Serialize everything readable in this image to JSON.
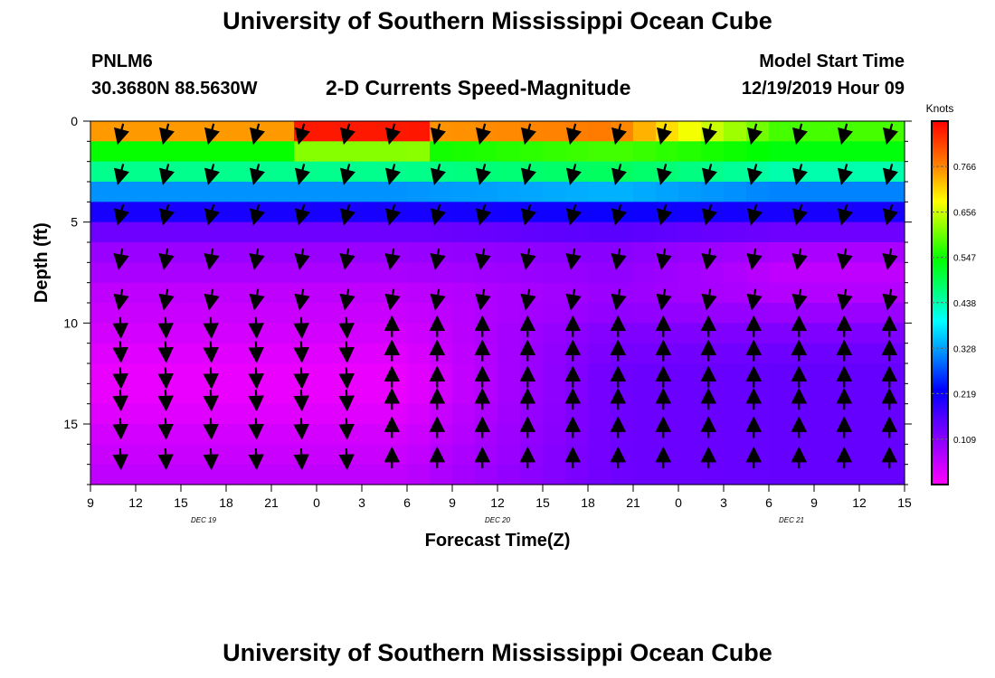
{
  "page": {
    "title_top": "University of Southern Mississippi Ocean Cube",
    "title_bottom": "University of Southern Mississippi Ocean Cube",
    "station_id": "PNLM6",
    "station_coords": "30.3680N 88.5630W",
    "subtitle": "2-D Currents Speed-Magnitude",
    "model_start_label": "Model Start Time",
    "model_start_value": "12/19/2019 Hour 09"
  },
  "chart_data": {
    "type": "heatmap",
    "title": "2-D Currents Speed-Magnitude",
    "xlabel": "Forecast Time(Z)",
    "ylabel": "Depth (ft)",
    "x_tick_labels": [
      "9",
      "12",
      "15",
      "18",
      "21",
      "0",
      "3",
      "6",
      "9",
      "12",
      "15",
      "18",
      "21",
      "0",
      "3",
      "6",
      "9",
      "12",
      "15"
    ],
    "x_range_hours": [
      0,
      54
    ],
    "date_labels": [
      {
        "text": "DEC 19",
        "at_tick": 2.5
      },
      {
        "text": "DEC 20",
        "at_tick": 9
      },
      {
        "text": "DEC 21",
        "at_tick": 15.5
      }
    ],
    "y_ticks": [
      0,
      5,
      10,
      15
    ],
    "ylim": [
      0,
      18
    ],
    "y_inverted": true,
    "colorbar": {
      "label": "Knots",
      "ticks": [
        0.109,
        0.219,
        0.328,
        0.438,
        0.547,
        0.656,
        0.766
      ],
      "range": [
        0.0,
        0.875
      ],
      "colors": [
        "#ff00ff",
        "#aa00ff",
        "#6600ff",
        "#0000ff",
        "#0080ff",
        "#00ffff",
        "#00ff80",
        "#00ff00",
        "#80ff00",
        "#ffff00",
        "#ff8000",
        "#ff0000"
      ]
    },
    "depth_layers": [
      0.5,
      1.5,
      2.5,
      3.5,
      4.5,
      5.5,
      6.5,
      7.5,
      8.5,
      9.5,
      10.5,
      11.5,
      12.5,
      13.5,
      14.5,
      15.5,
      16.5,
      17.5
    ],
    "speed_profile_early": [
      0.78,
      0.56,
      0.47,
      0.33,
      0.22,
      0.15,
      0.1,
      0.08,
      0.06,
      0.05,
      0.04,
      0.03,
      0.02,
      0.02,
      0.03,
      0.04,
      0.05,
      0.06
    ],
    "speed_profile_mid": [
      0.8,
      0.6,
      0.5,
      0.35,
      0.23,
      0.17,
      0.12,
      0.11,
      0.1,
      0.11,
      0.13,
      0.14,
      0.15,
      0.15,
      0.15,
      0.15,
      0.15,
      0.15
    ],
    "speed_profile_late": [
      0.6,
      0.55,
      0.45,
      0.32,
      0.22,
      0.15,
      0.08,
      0.06,
      0.07,
      0.1,
      0.13,
      0.15,
      0.16,
      0.16,
      0.16,
      0.16,
      0.16,
      0.16
    ],
    "vector_depths": [
      0.6,
      2.6,
      4.6,
      6.8,
      8.8,
      10.2,
      11.4,
      12.7,
      13.8,
      15.2,
      16.7
    ],
    "vector_hours": [
      2,
      5,
      8,
      11,
      14,
      17,
      20,
      23,
      26,
      29,
      32,
      35,
      38,
      41,
      44,
      47,
      50,
      53
    ],
    "vector_directions_deg": {
      "surface": 195,
      "upper_middle": 190,
      "mid": 178,
      "deep": 0
    }
  }
}
